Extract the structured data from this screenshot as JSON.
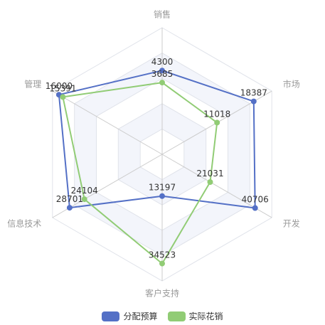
{
  "chart_data": {
    "type": "radar",
    "indicators": [
      {
        "name": "销售",
        "max": 6500
      },
      {
        "name": "市场",
        "max": 22000
      },
      {
        "name": "开发",
        "max": 48000
      },
      {
        "name": "客户支持",
        "max": 40000
      },
      {
        "name": "信息技术",
        "max": 34000
      },
      {
        "name": "管理",
        "max": 17000
      }
    ],
    "series": [
      {
        "name": "分配预算",
        "color": "#5470c6",
        "values": [
          4300,
          18387,
          40706,
          13197,
          28701,
          16000
        ],
        "labels": [
          "4300",
          "18387",
          "40706",
          "13197",
          "28701",
          "16000"
        ]
      },
      {
        "name": "实际花销",
        "color": "#91cc75",
        "values": [
          3685,
          11018,
          21031,
          34523,
          24104,
          15391
        ],
        "labels": [
          "3685",
          "11018",
          "21031",
          "34523",
          "24104",
          "15391"
        ]
      }
    ],
    "legend_position": "bottom",
    "split_number": 5
  }
}
